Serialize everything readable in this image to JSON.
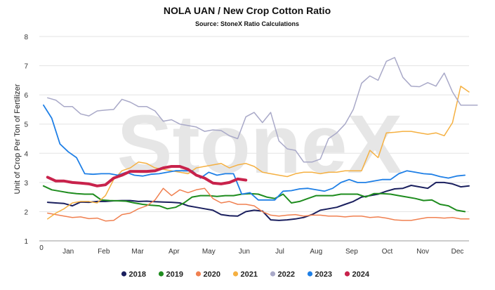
{
  "chart_data": {
    "type": "line",
    "title": "NOLA UAN / New Crop Cotton Ratio",
    "subtitle": "Source: StoneX Ratio Calculations",
    "ylabel": "Unit of Crop Per Ton of Fertilizer",
    "xlabel": "",
    "watermark": "StoneX",
    "ylim": [
      1,
      8
    ],
    "xlim": [
      0,
      52
    ],
    "yticks": [
      1,
      2,
      3,
      4,
      5,
      6,
      7,
      8
    ],
    "x_origin_label": "0",
    "months": [
      {
        "label": "Jan",
        "week": 3.5
      },
      {
        "label": "Feb",
        "week": 7.8
      },
      {
        "label": "Mar",
        "week": 11.9
      },
      {
        "label": "Apr",
        "week": 16.3
      },
      {
        "label": "May",
        "week": 20.5
      },
      {
        "label": "Jun",
        "week": 24.8
      },
      {
        "label": "Jul",
        "week": 29.1
      },
      {
        "label": "Aug",
        "week": 33.5
      },
      {
        "label": "Sep",
        "week": 37.8
      },
      {
        "label": "Oct",
        "week": 42.1
      },
      {
        "label": "Nov",
        "week": 46.4
      },
      {
        "label": "Dec",
        "week": 50.6
      }
    ],
    "grid": true,
    "legend_position": "bottom",
    "series": [
      {
        "name": "2018",
        "color": "#1a1f5e",
        "width": 2,
        "x": [
          1,
          2,
          3,
          4,
          5,
          6,
          7,
          8,
          9,
          10,
          11,
          12,
          13,
          14,
          15,
          16,
          17,
          18,
          19,
          20,
          21,
          22,
          23,
          24,
          25,
          26,
          27,
          28,
          29,
          30,
          31,
          32,
          33,
          34,
          35,
          36,
          37,
          38,
          39,
          40,
          41,
          42,
          43,
          44,
          45,
          46,
          47,
          48,
          49,
          50,
          51,
          52
        ],
        "values": [
          2.32,
          2.3,
          2.28,
          2.2,
          2.33,
          2.32,
          2.35,
          2.35,
          2.37,
          2.38,
          2.38,
          2.35,
          2.36,
          2.34,
          2.33,
          2.32,
          2.3,
          2.2,
          2.15,
          2.1,
          2.05,
          1.9,
          1.86,
          1.85,
          2.0,
          2.05,
          2.02,
          1.72,
          1.7,
          1.72,
          1.75,
          1.8,
          1.9,
          2.05,
          2.1,
          2.15,
          2.25,
          2.35,
          2.5,
          2.55,
          2.6,
          2.7,
          2.78,
          2.8,
          2.9,
          2.85,
          2.8,
          3.0,
          3.0,
          2.95,
          2.85,
          2.88
        ]
      },
      {
        "name": "2019",
        "color": "#1e8c1e",
        "width": 2,
        "x": [
          0.5,
          1.5,
          2.5,
          3.5,
          4.5,
          5.5,
          6.5,
          7.5,
          8.5,
          9.5,
          10.5,
          11.5,
          12.5,
          13.5,
          14.5,
          15.5,
          16.5,
          17.5,
          18.5,
          19.5,
          20.5,
          21.5,
          22.5,
          23.5,
          24.5,
          25.5,
          26.5,
          27.5,
          28.5,
          29.5,
          30.5,
          31.5,
          32.5,
          33.5,
          34.5,
          35.5,
          36.5,
          37.5,
          38.5,
          39.5,
          40.5,
          41.5,
          42.5,
          43.5,
          44.5,
          45.5,
          46.5,
          47.5,
          48.5,
          49.5,
          50.5,
          51.5
        ],
        "values": [
          2.88,
          2.75,
          2.7,
          2.65,
          2.62,
          2.6,
          2.6,
          2.4,
          2.38,
          2.37,
          2.36,
          2.3,
          2.25,
          2.22,
          2.2,
          2.1,
          2.15,
          2.3,
          2.5,
          2.55,
          2.55,
          2.52,
          2.55,
          2.55,
          2.6,
          2.62,
          2.6,
          2.5,
          2.45,
          2.6,
          2.3,
          2.35,
          2.45,
          2.55,
          2.55,
          2.55,
          2.6,
          2.6,
          2.6,
          2.5,
          2.62,
          2.62,
          2.6,
          2.55,
          2.5,
          2.45,
          2.38,
          2.4,
          2.25,
          2.2,
          2.05,
          2.0
        ]
      },
      {
        "name": "2020",
        "color": "#f08050",
        "width": 1.5,
        "x": [
          1,
          2,
          3,
          4,
          5,
          6,
          7,
          8,
          9,
          10,
          11,
          12,
          13,
          14,
          15,
          16,
          17,
          18,
          19,
          20,
          21,
          22,
          23,
          24,
          25,
          26,
          27,
          28,
          29,
          30,
          31,
          32,
          33,
          34,
          35,
          36,
          37,
          38,
          39,
          40,
          41,
          42,
          43,
          44,
          45,
          46,
          47,
          48,
          49,
          50,
          51,
          52
        ],
        "values": [
          1.95,
          1.9,
          1.85,
          1.8,
          1.82,
          1.76,
          1.78,
          1.68,
          1.7,
          1.9,
          1.95,
          2.1,
          2.2,
          2.4,
          2.8,
          2.55,
          2.75,
          2.65,
          2.75,
          2.8,
          2.45,
          2.3,
          2.35,
          2.25,
          2.25,
          2.2,
          2.0,
          1.88,
          1.85,
          1.88,
          1.9,
          1.85,
          1.88,
          1.88,
          1.85,
          1.85,
          1.82,
          1.85,
          1.85,
          1.8,
          1.82,
          1.78,
          1.72,
          1.7,
          1.7,
          1.75,
          1.8,
          1.8,
          1.78,
          1.8,
          1.75,
          1.75
        ]
      },
      {
        "name": "2021",
        "color": "#f5b041",
        "width": 1.5,
        "x": [
          1,
          2,
          3,
          4,
          5,
          6,
          7,
          8,
          9,
          10,
          11,
          12,
          13,
          14,
          15,
          16,
          17,
          18,
          19,
          20,
          21,
          22,
          23,
          24,
          25,
          26,
          27,
          28,
          29,
          30,
          31,
          32,
          33,
          34,
          35,
          36,
          37,
          38,
          39,
          40,
          41,
          42,
          43,
          44,
          45,
          46,
          47,
          48,
          49,
          50,
          51,
          52
        ],
        "values": [
          1.75,
          1.95,
          2.1,
          2.3,
          2.35,
          2.35,
          2.3,
          2.55,
          3.1,
          3.4,
          3.5,
          3.7,
          3.65,
          3.5,
          3.45,
          3.4,
          3.35,
          3.3,
          3.5,
          3.55,
          3.6,
          3.65,
          3.5,
          3.6,
          3.65,
          3.55,
          3.35,
          3.3,
          3.25,
          3.2,
          3.3,
          3.35,
          3.35,
          3.3,
          3.35,
          3.35,
          3.4,
          3.4,
          3.4,
          4.1,
          3.85,
          4.7,
          4.72,
          4.75,
          4.75,
          4.7,
          4.65,
          4.7,
          4.6,
          5.05,
          6.3,
          6.1
        ]
      },
      {
        "name": "2022",
        "color": "#a9a9c8",
        "width": 1.5,
        "x": [
          1,
          2,
          3,
          4,
          5,
          6,
          7,
          8,
          9,
          10,
          11,
          12,
          13,
          14,
          15,
          16,
          17,
          18,
          19,
          20,
          21,
          22,
          23,
          24,
          25,
          26,
          27,
          28,
          29,
          30,
          31,
          32,
          33,
          34,
          35,
          36,
          37,
          38,
          39,
          40,
          41,
          42,
          43,
          44,
          45,
          46,
          47,
          48,
          49,
          50,
          51,
          52,
          53
        ],
        "values": [
          5.9,
          5.82,
          5.6,
          5.6,
          5.35,
          5.28,
          5.45,
          5.48,
          5.5,
          5.85,
          5.75,
          5.6,
          5.6,
          5.45,
          5.1,
          5.15,
          5.0,
          4.95,
          4.9,
          4.75,
          4.8,
          4.78,
          4.6,
          4.5,
          5.25,
          5.4,
          5.05,
          5.4,
          4.42,
          4.15,
          4.1,
          3.7,
          3.7,
          3.8,
          4.5,
          4.7,
          5.0,
          5.5,
          6.4,
          6.65,
          6.5,
          7.15,
          7.28,
          6.6,
          6.3,
          6.28,
          6.42,
          6.3,
          6.75,
          6.1,
          5.65,
          5.65,
          5.65
        ]
      },
      {
        "name": "2023",
        "color": "#1e7fe6",
        "width": 1.8,
        "x": [
          0.5,
          1.5,
          2.5,
          3.5,
          4.5,
          5.5,
          6.5,
          7.5,
          8.5,
          9.5,
          10.5,
          11.5,
          12.5,
          13.5,
          14.5,
          15.5,
          16.5,
          17.5,
          18.5,
          19.5,
          20.5,
          21.5,
          22.5,
          23.5,
          24.5,
          25.5,
          26.5,
          27.5,
          28.5,
          29.5,
          30.5,
          31.5,
          32.5,
          33.5,
          34.5,
          35.5,
          36.5,
          37.5,
          38.5,
          39.5,
          40.5,
          41.5,
          42.5,
          43.5,
          44.5,
          45.5,
          46.5,
          47.5,
          48.5,
          49.5,
          50.5,
          51.5
        ],
        "values": [
          5.65,
          5.2,
          4.32,
          4.05,
          3.85,
          3.3,
          3.28,
          3.3,
          3.3,
          3.25,
          3.35,
          3.25,
          3.22,
          3.28,
          3.3,
          3.35,
          3.4,
          3.4,
          3.4,
          3.15,
          3.35,
          3.25,
          3.3,
          3.3,
          2.6,
          2.65,
          2.4,
          2.4,
          2.4,
          2.7,
          2.72,
          2.78,
          2.8,
          2.75,
          2.7,
          2.8,
          3.0,
          3.1,
          3.0,
          3.0,
          3.05,
          3.1,
          3.1,
          3.3,
          3.4,
          3.35,
          3.3,
          3.28,
          3.2,
          3.15,
          3.22,
          3.25
        ]
      },
      {
        "name": "2024",
        "color": "#c8224b",
        "width": 4,
        "x": [
          1,
          2,
          3,
          4,
          5,
          6,
          7,
          8,
          9,
          10,
          11,
          12,
          13,
          14,
          15,
          16,
          17,
          18,
          19,
          20,
          21,
          22,
          23,
          24,
          25
        ],
        "values": [
          3.18,
          3.05,
          3.05,
          3.0,
          2.98,
          2.95,
          2.88,
          2.92,
          3.15,
          3.25,
          3.38,
          3.38,
          3.38,
          3.4,
          3.5,
          3.55,
          3.55,
          3.45,
          3.25,
          3.15,
          2.98,
          2.95,
          3.0,
          3.12,
          3.08
        ]
      }
    ]
  }
}
